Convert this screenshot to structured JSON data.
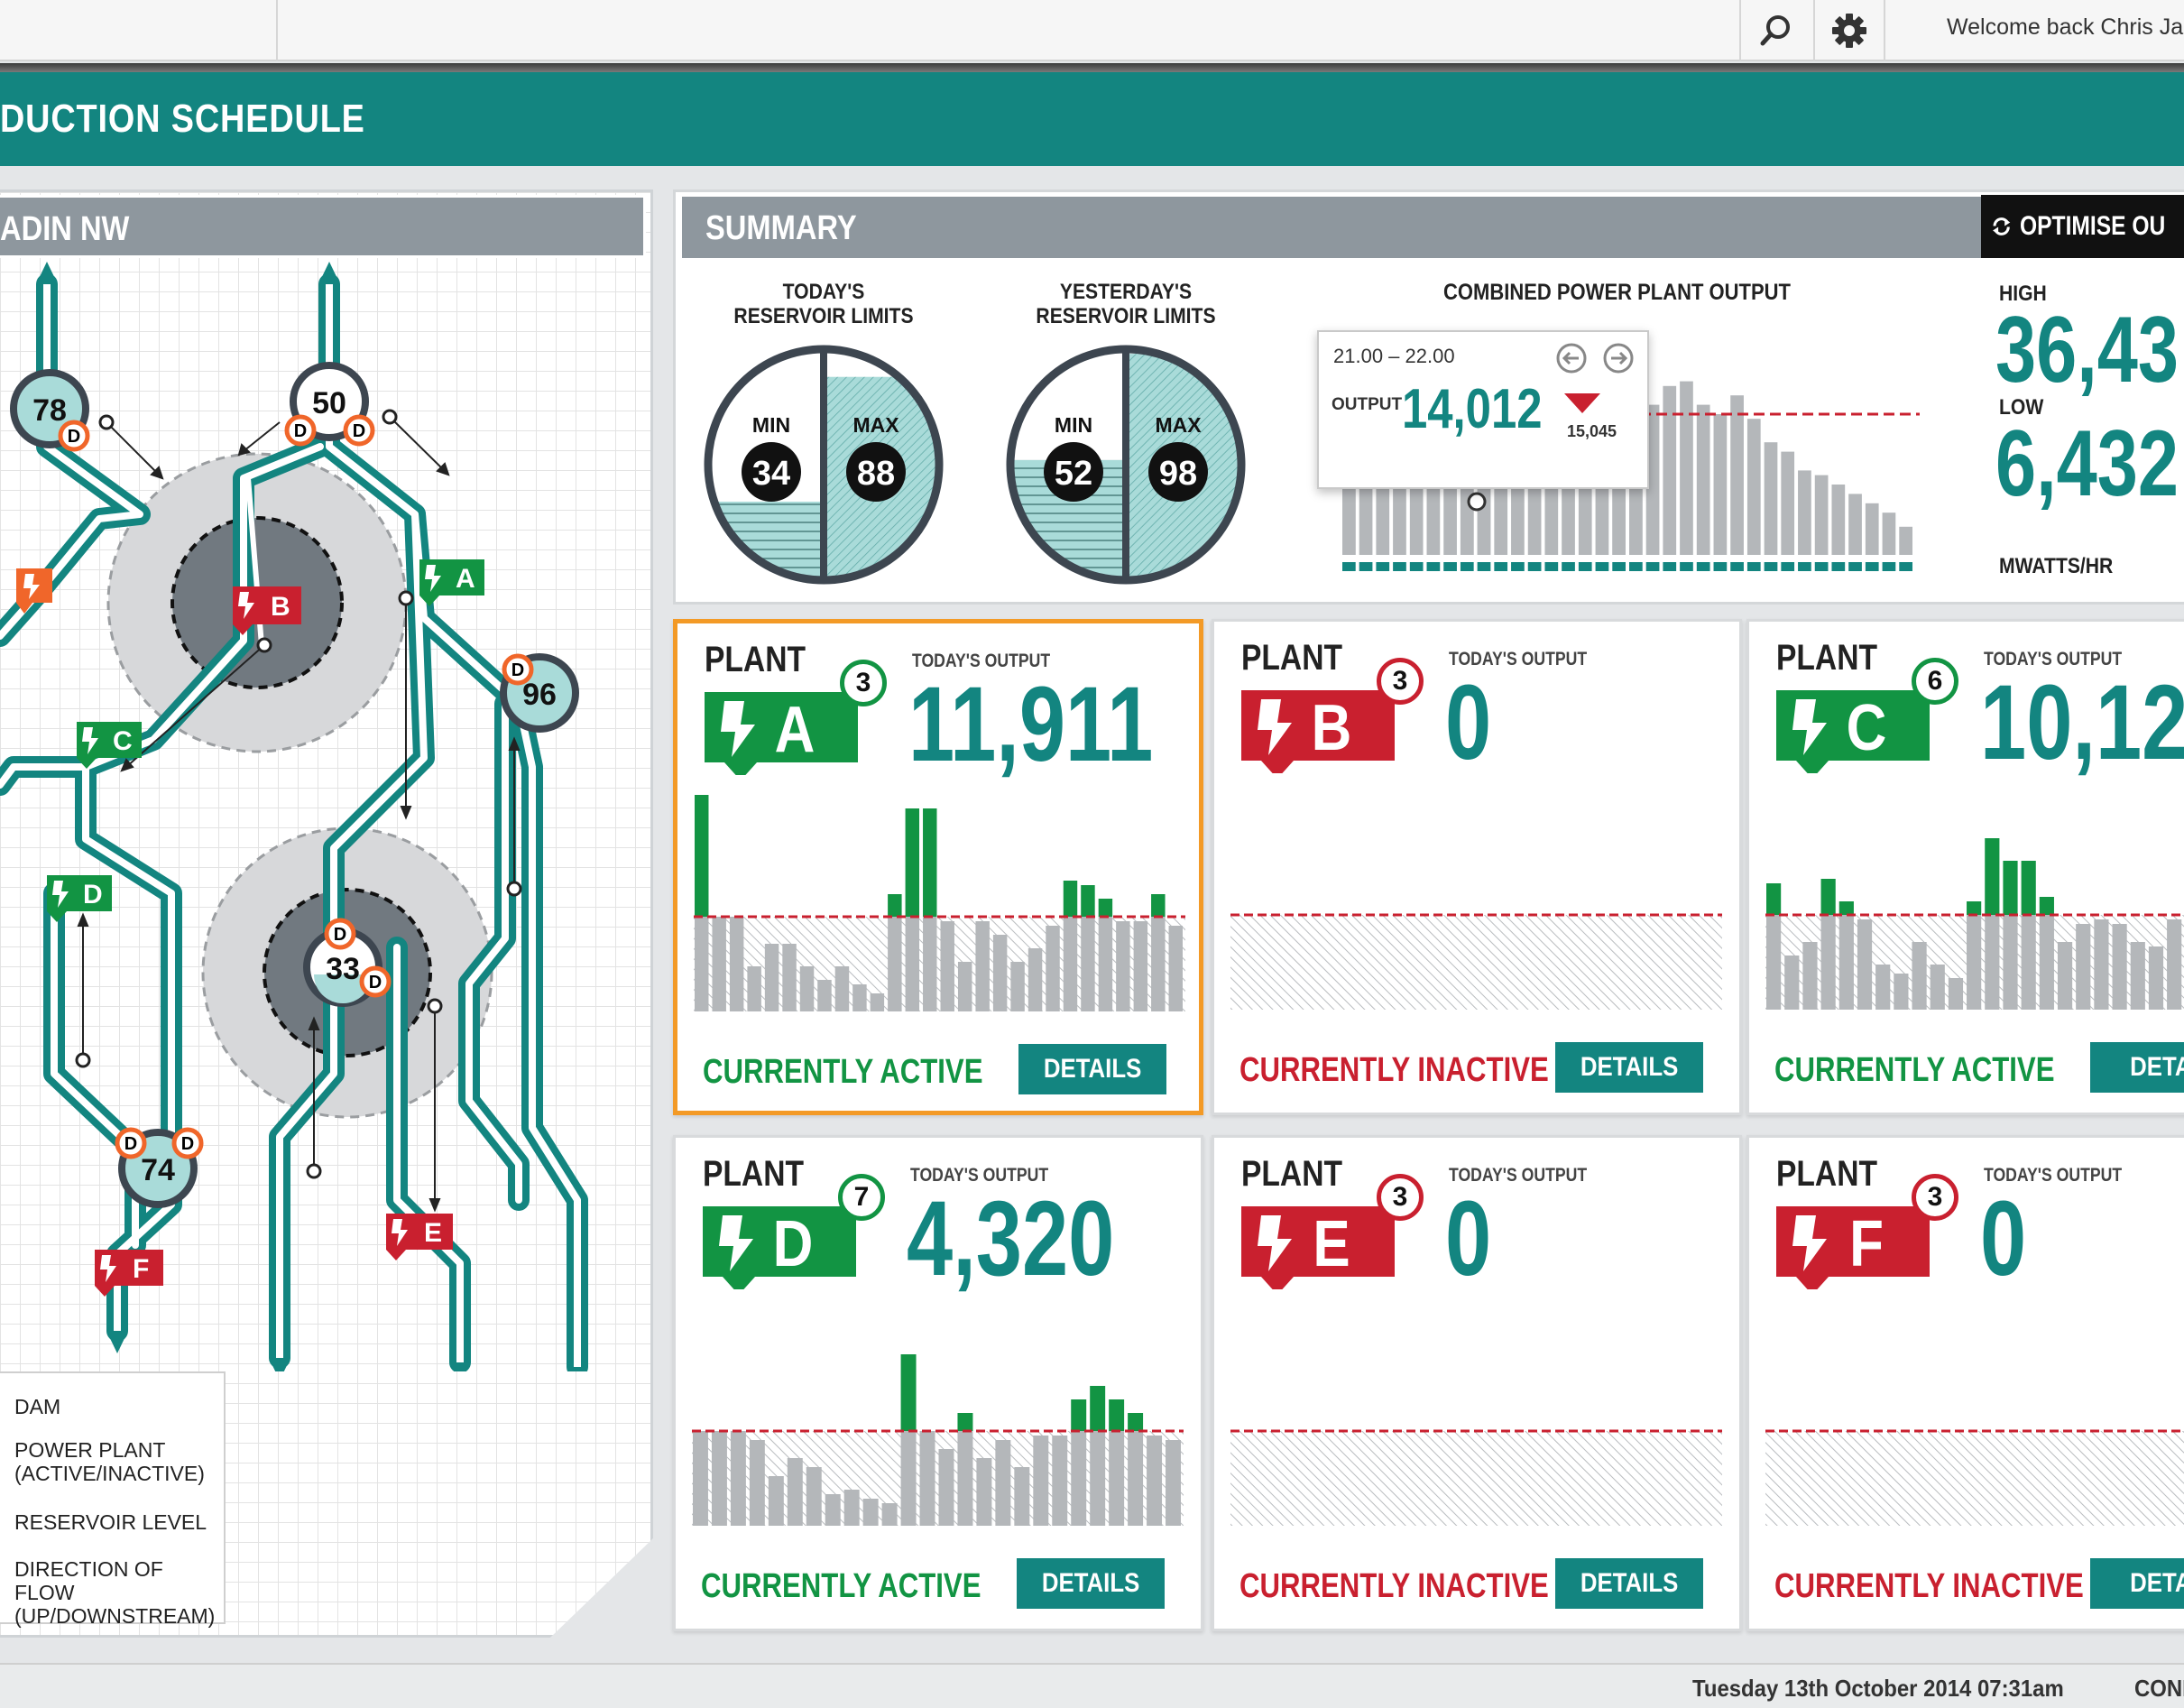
{
  "header": {
    "welcome": "Welcome back Chris Jar",
    "icons": [
      "search-icon",
      "gear-icon"
    ]
  },
  "page_title": "DUCTION SCHEDULE",
  "map": {
    "title": "ADIN NW",
    "dams": [
      {
        "id": "dam-78",
        "value": "78"
      },
      {
        "id": "dam-50",
        "value": "50"
      },
      {
        "id": "dam-96",
        "value": "96"
      },
      {
        "id": "dam-33",
        "value": "33"
      },
      {
        "id": "dam-74",
        "value": "74"
      }
    ],
    "plants": [
      {
        "id": "A",
        "state": "active"
      },
      {
        "id": "B",
        "state": "inactive"
      },
      {
        "id": "C",
        "state": "active"
      },
      {
        "id": "D",
        "state": "active"
      },
      {
        "id": "E",
        "state": "inactive"
      },
      {
        "id": "F",
        "state": "inactive"
      }
    ],
    "dam_marker": "D",
    "legend": [
      "DAM",
      "POWER PLANT\n(ACTIVE/INACTIVE)",
      "RESERVOIR LEVEL",
      "DIRECTION OF FLOW\n(UP/DOWNSTREAM)"
    ]
  },
  "summary": {
    "title": "SUMMARY",
    "optimise_label": "OPTIMISE OU",
    "today": {
      "title": "TODAY'S\nRESERVOIR LIMITS",
      "min_label": "MIN",
      "min": "34",
      "max_label": "MAX",
      "max": "88",
      "min_fill": 0.34,
      "max_fill": 0.88
    },
    "yesterday": {
      "title": "YESTERDAY'S\nRESERVOIR LIMITS",
      "min_label": "MIN",
      "min": "52",
      "max_label": "MAX",
      "max": "98",
      "min_fill": 0.52,
      "max_fill": 0.98
    },
    "combined_title": "COMBINED POWER  PLANT OUTPUT",
    "tooltip": {
      "range": "21.00 – 22.00",
      "label": "OUTPUT",
      "value": "14,012",
      "sub": "15,045"
    },
    "high_label": "HIGH",
    "high_value": "36,43",
    "low_label": "LOW",
    "low_value": "6,432",
    "unit": "MWATTS/HR"
  },
  "chart_data": [
    {
      "type": "bar",
      "title": "COMBINED POWER  PLANT OUTPUT",
      "values": [
        70,
        52,
        44,
        38,
        46,
        40,
        34,
        28,
        40,
        34,
        58,
        62,
        64,
        60,
        56,
        52,
        62,
        66,
        64,
        72,
        74,
        64,
        60,
        68,
        58,
        48,
        44,
        36,
        34,
        30,
        26,
        22,
        18,
        12
      ],
      "extra_spikes": [
        [
          0,
          76
        ],
        [
          7,
          76
        ],
        [
          8,
          74
        ],
        [
          16,
          74
        ],
        [
          17,
          70
        ]
      ],
      "threshold": 60,
      "ylim": [
        0,
        100
      ]
    },
    {
      "type": "bar",
      "series": "plant-A",
      "values": [
        96,
        42,
        42,
        20,
        30,
        30,
        20,
        14,
        20,
        12,
        8,
        52,
        90,
        90,
        40,
        22,
        40,
        34,
        22,
        28,
        38,
        58,
        56,
        50,
        40,
        40,
        52,
        38
      ],
      "threshold": 42,
      "ylim": [
        0,
        100
      ]
    },
    {
      "type": "bar",
      "series": "plant-B",
      "values": [],
      "threshold": 42,
      "ylim": [
        0,
        100
      ]
    },
    {
      "type": "bar",
      "series": "plant-C",
      "values": [
        56,
        24,
        30,
        58,
        48,
        40,
        20,
        16,
        30,
        20,
        14,
        48,
        76,
        66,
        66,
        50,
        30,
        38,
        40,
        38,
        30,
        28,
        40,
        60,
        70,
        62,
        58
      ],
      "threshold": 42,
      "ylim": [
        0,
        100
      ]
    },
    {
      "type": "bar",
      "series": "plant-D",
      "values": [
        42,
        42,
        42,
        38,
        22,
        30,
        26,
        14,
        16,
        12,
        10,
        76,
        42,
        34,
        50,
        30,
        38,
        26,
        40,
        40,
        56,
        62,
        56,
        50,
        40,
        38
      ],
      "threshold": 42,
      "ylim": [
        0,
        100
      ]
    },
    {
      "type": "bar",
      "series": "plant-E",
      "values": [],
      "threshold": 42,
      "ylim": [
        0,
        100
      ]
    },
    {
      "type": "bar",
      "series": "plant-F",
      "values": [],
      "threshold": 42,
      "ylim": [
        0,
        100
      ]
    }
  ],
  "plants": [
    {
      "plant_label": "PLANT",
      "letter": "A",
      "count": "3",
      "output_label": "TODAY'S OUTPUT",
      "output": "11,911",
      "status": "CURRENTLY ACTIVE",
      "details": "DETAILS",
      "active": true,
      "selected": true
    },
    {
      "plant_label": "PLANT",
      "letter": "B",
      "count": "3",
      "output_label": "TODAY'S OUTPUT",
      "output": "0",
      "status": "CURRENTLY INACTIVE",
      "details": "DETAILS",
      "active": false,
      "selected": false
    },
    {
      "plant_label": "PLANT",
      "letter": "C",
      "count": "6",
      "output_label": "TODAY'S OUTPUT",
      "output": "10,12",
      "status": "CURRENTLY ACTIVE",
      "details": "DETAI",
      "active": true,
      "selected": false
    },
    {
      "plant_label": "PLANT",
      "letter": "D",
      "count": "7",
      "output_label": "TODAY'S OUTPUT",
      "output": "4,320",
      "status": "CURRENTLY ACTIVE",
      "details": "DETAILS",
      "active": true,
      "selected": false
    },
    {
      "plant_label": "PLANT",
      "letter": "E",
      "count": "3",
      "output_label": "TODAY'S OUTPUT",
      "output": "0",
      "status": "CURRENTLY INACTIVE",
      "details": "DETAILS",
      "active": false,
      "selected": false
    },
    {
      "plant_label": "PLANT",
      "letter": "F",
      "count": "3",
      "output_label": "TODAY'S OUTPUT",
      "output": "0",
      "status": "CURRENTLY INACTIVE",
      "details": "DETAI",
      "active": false,
      "selected": false
    }
  ],
  "footer": {
    "date": "Tuesday 13th October 2014 07:31am",
    "connection": "CONNE"
  },
  "colors": {
    "teal": "#138580",
    "green": "#129443",
    "red": "#c9202f",
    "orange": "#f39a26",
    "gray": "#8e979e",
    "bar_gray": "#b4b7ba"
  }
}
